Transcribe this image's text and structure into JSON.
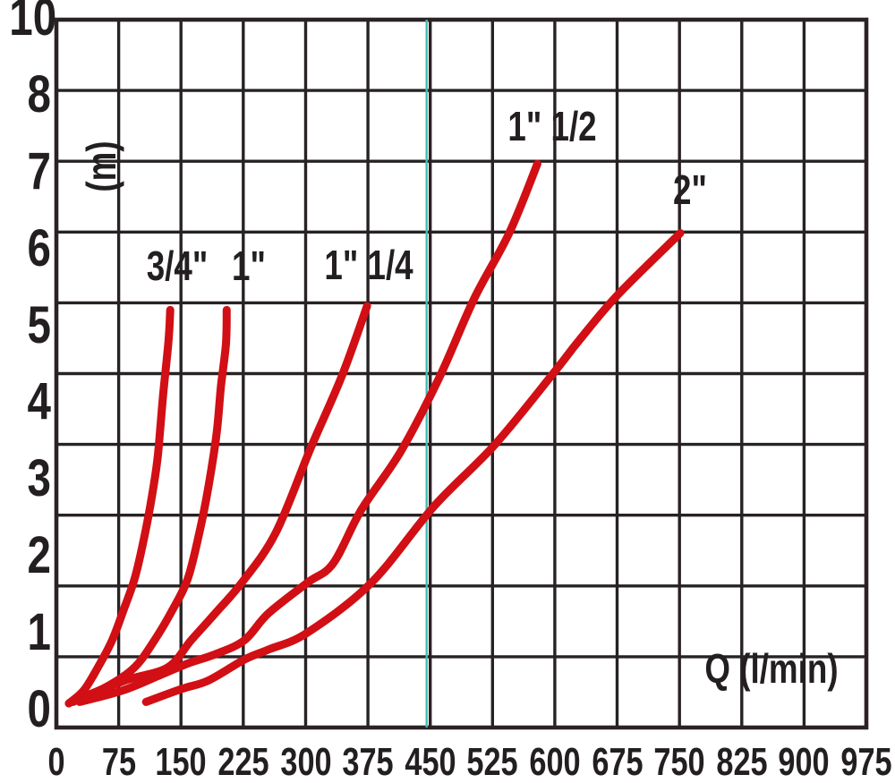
{
  "colors": {
    "background": "#ffffff",
    "grid": "#272223",
    "border": "#2b2224",
    "text": "#231f20",
    "curve": "#d10f14",
    "highlight_line": "#3fbcb6"
  },
  "y_axis": {
    "unit_label": "(m)",
    "tick_labels": [
      "10",
      "8",
      "7",
      "6",
      "5",
      "4",
      "3",
      "2",
      "1",
      "0"
    ]
  },
  "x_axis": {
    "unit_label": "Q (l/min)",
    "tick_labels": [
      "0",
      "75",
      "150",
      "225",
      "300",
      "375",
      "450",
      "525",
      "600",
      "675",
      "750",
      "825",
      "900",
      "975"
    ]
  },
  "chart_data": {
    "type": "line",
    "title": "",
    "xlabel": "Q (l/min)",
    "ylabel": "(m)",
    "x_unit": "l/min",
    "y_unit": "m",
    "xlim": [
      0,
      975
    ],
    "ylim": [
      0,
      10
    ],
    "x_gridline_step": 75,
    "grid": true,
    "legend_position": "inline-labels",
    "highlight_vline_x": 450,
    "series": [
      {
        "name": "3/4\"",
        "key": "three-quarter-inch",
        "points": [
          [
            15,
            0.08
          ],
          [
            33,
            0.25
          ],
          [
            50,
            0.55
          ],
          [
            67,
            0.9
          ],
          [
            81,
            1.3
          ],
          [
            94,
            1.7
          ],
          [
            104,
            2.15
          ],
          [
            113,
            2.65
          ],
          [
            121,
            3.2
          ],
          [
            125,
            3.65
          ],
          [
            129,
            4.15
          ],
          [
            135,
            4.8
          ],
          [
            137,
            5.2
          ]
        ]
      },
      {
        "name": "1\"",
        "key": "one-inch",
        "points": [
          [
            20,
            0.1
          ],
          [
            61,
            0.3
          ],
          [
            94,
            0.55
          ],
          [
            118,
            0.9
          ],
          [
            140,
            1.3
          ],
          [
            158,
            1.7
          ],
          [
            172,
            2.3
          ],
          [
            183,
            2.9
          ],
          [
            193,
            3.6
          ],
          [
            198,
            4.2
          ],
          [
            204,
            4.75
          ],
          [
            205,
            5.2
          ]
        ]
      },
      {
        "name": "1\" 1/4",
        "key": "one-and-quarter-inch",
        "points": [
          [
            22,
            0.12
          ],
          [
            83,
            0.38
          ],
          [
            134,
            0.55
          ],
          [
            162,
            0.9
          ],
          [
            191,
            1.25
          ],
          [
            223,
            1.65
          ],
          [
            264,
            2.3
          ],
          [
            306,
            3.4
          ],
          [
            344,
            4.35
          ],
          [
            374,
            5.25
          ]
        ]
      },
      {
        "name": "1\" 1/2",
        "key": "one-and-half-inch",
        "points": [
          [
            28,
            0.1
          ],
          [
            80,
            0.25
          ],
          [
            123,
            0.44
          ],
          [
            158,
            0.6
          ],
          [
            191,
            0.72
          ],
          [
            226,
            0.9
          ],
          [
            255,
            1.25
          ],
          [
            302,
            1.65
          ],
          [
            333,
            1.9
          ],
          [
            367,
            2.6
          ],
          [
            414,
            3.35
          ],
          [
            460,
            4.3
          ],
          [
            503,
            5.35
          ],
          [
            545,
            6.2
          ],
          [
            579,
            7.1
          ]
        ]
      },
      {
        "name": "2\"",
        "key": "two-inch",
        "points": [
          [
            108,
            0.1
          ],
          [
            151,
            0.27
          ],
          [
            183,
            0.38
          ],
          [
            226,
            0.65
          ],
          [
            255,
            0.78
          ],
          [
            302,
            1.0
          ],
          [
            379,
            1.65
          ],
          [
            455,
            2.65
          ],
          [
            528,
            3.45
          ],
          [
            600,
            4.4
          ],
          [
            629,
            4.8
          ],
          [
            676,
            5.4
          ],
          [
            751,
            6.2
          ]
        ]
      }
    ],
    "curve_label_positions": [
      {
        "series": 0,
        "x": 198,
        "y": 297
      },
      {
        "series": 1,
        "x": 278,
        "y": 297
      },
      {
        "series": 2,
        "x": 412,
        "y": 296
      },
      {
        "series": 3,
        "x": 617,
        "y": 141
      },
      {
        "series": 4,
        "x": 771,
        "y": 212
      }
    ]
  }
}
